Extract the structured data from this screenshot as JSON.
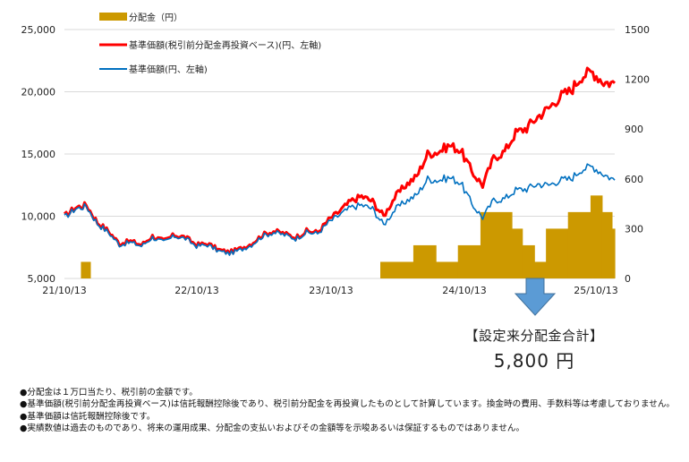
{
  "chart_data": {
    "type": "line+bar",
    "title": "",
    "legend": [
      {
        "label": "分配金（円）",
        "type": "bar",
        "color": "#CC9900"
      },
      {
        "label": "基準価額(税引前分配金再投資ベース)(円、左軸)",
        "type": "line",
        "color": "#FF0000"
      },
      {
        "label": "基準価額(円、左軸)",
        "type": "line",
        "color": "#0070C0"
      }
    ],
    "left_axis": {
      "min": 5000,
      "max": 25000,
      "ticks": [
        "5,000",
        "10,000",
        "15,000",
        "20,000",
        "25,000"
      ],
      "tick_values": [
        5000,
        10000,
        15000,
        20000,
        25000
      ]
    },
    "right_axis": {
      "min": 0,
      "max": 1500,
      "ticks": [
        "0",
        "300",
        "600",
        "900",
        "1200",
        "1500"
      ],
      "tick_values": [
        0,
        300,
        600,
        900,
        1200,
        1500
      ]
    },
    "x_ticks": [
      "21/10/13",
      "22/10/13",
      "23/10/13",
      "24/10/13",
      "25/10/13"
    ],
    "grid": true,
    "series": [
      {
        "name": "基準価額(税引前分配金再投資ベース)(円、左軸)",
        "color": "#FF0000",
        "t": [
          0,
          0.02,
          0.04,
          0.06,
          0.08,
          0.1,
          0.12,
          0.14,
          0.16,
          0.18,
          0.2,
          0.22,
          0.24,
          0.26,
          0.28,
          0.3,
          0.32,
          0.34,
          0.36,
          0.38,
          0.4,
          0.42,
          0.44,
          0.46,
          0.48,
          0.5,
          0.52,
          0.54,
          0.56,
          0.58,
          0.6,
          0.62,
          0.64,
          0.66,
          0.68,
          0.7,
          0.72,
          0.74,
          0.76,
          0.78,
          0.8,
          0.82,
          0.84,
          0.86,
          0.88,
          0.9,
          0.92,
          0.94,
          0.96,
          0.98,
          1.0
        ],
        "values": [
          10000,
          10700,
          10900,
          9500,
          8800,
          7800,
          8000,
          7700,
          8400,
          8000,
          8500,
          8300,
          7700,
          7800,
          7300,
          7100,
          7400,
          7800,
          8500,
          8800,
          8600,
          8300,
          8800,
          8700,
          9700,
          10400,
          11200,
          11600,
          11200,
          10000,
          11500,
          12500,
          13200,
          15000,
          15200,
          15700,
          15300,
          13600,
          12500,
          14700,
          15200,
          16700,
          17100,
          18000,
          18700,
          19600,
          20100,
          21300,
          21600,
          20800,
          20700
        ],
        "unit": "円"
      },
      {
        "name": "基準価額(円、左軸)",
        "color": "#0070C0",
        "t": [
          0,
          0.02,
          0.04,
          0.06,
          0.08,
          0.1,
          0.12,
          0.14,
          0.16,
          0.18,
          0.2,
          0.22,
          0.24,
          0.26,
          0.28,
          0.3,
          0.32,
          0.34,
          0.36,
          0.38,
          0.4,
          0.42,
          0.44,
          0.46,
          0.48,
          0.5,
          0.52,
          0.54,
          0.56,
          0.58,
          0.6,
          0.62,
          0.64,
          0.66,
          0.68,
          0.7,
          0.72,
          0.74,
          0.76,
          0.78,
          0.8,
          0.82,
          0.84,
          0.86,
          0.88,
          0.9,
          0.92,
          0.94,
          0.96,
          0.98,
          1.0
        ],
        "values": [
          9900,
          10600,
          10800,
          9400,
          8700,
          7700,
          7900,
          7600,
          8300,
          7900,
          8400,
          8200,
          7600,
          7700,
          7200,
          7000,
          7300,
          7700,
          8400,
          8700,
          8500,
          8200,
          8700,
          8600,
          9500,
          10100,
          10700,
          10900,
          10600,
          9300,
          10500,
          11200,
          11700,
          13000,
          12900,
          13100,
          12700,
          11000,
          9900,
          11300,
          11400,
          12100,
          12200,
          12600,
          12500,
          12900,
          13000,
          13800,
          14000,
          13400,
          12900
        ],
        "unit": "円"
      }
    ],
    "distributions": {
      "name": "分配金（円）",
      "color": "#CC9900",
      "axis": "right",
      "segments": [
        {
          "t0": 0.03,
          "t1": 0.047,
          "value": 100
        },
        {
          "t0": 0.574,
          "t1": 0.634,
          "value": 100
        },
        {
          "t0": 0.634,
          "t1": 0.675,
          "value": 200
        },
        {
          "t0": 0.675,
          "t1": 0.715,
          "value": 100
        },
        {
          "t0": 0.715,
          "t1": 0.756,
          "value": 200
        },
        {
          "t0": 0.756,
          "t1": 0.813,
          "value": 400
        },
        {
          "t0": 0.813,
          "t1": 0.832,
          "value": 300
        },
        {
          "t0": 0.832,
          "t1": 0.854,
          "value": 200
        },
        {
          "t0": 0.854,
          "t1": 0.875,
          "value": 100
        },
        {
          "t0": 0.875,
          "t1": 0.915,
          "value": 300
        },
        {
          "t0": 0.915,
          "t1": 0.956,
          "value": 400
        },
        {
          "t0": 0.956,
          "t1": 0.977,
          "value": 500
        },
        {
          "t0": 0.977,
          "t1": 0.995,
          "value": 400
        },
        {
          "t0": 0.995,
          "t1": 1.0,
          "value": 300
        }
      ]
    }
  },
  "total": {
    "title": "【設定来分配金合計】",
    "value": "5,800 円"
  },
  "notes": [
    "●分配金は１万口当たり、税引前の金額です。",
    "●基準価額(税引前分配金再投資ベース)は信託報酬控除後であり、税引前分配金を再投資したものとして計算しています。換金時の費用、手数料等は考慮しておりません。",
    "●基準価額は信託報酬控除後です。",
    "●実績数値は過去のものであり、将来の運用成果、分配金の支払いおよびその金額等を示唆あるいは保証するものではありません。"
  ],
  "colors": {
    "grid": "#D9D9D9",
    "arrow_fill": "#5B9BD5",
    "arrow_stroke": "#41719C"
  }
}
